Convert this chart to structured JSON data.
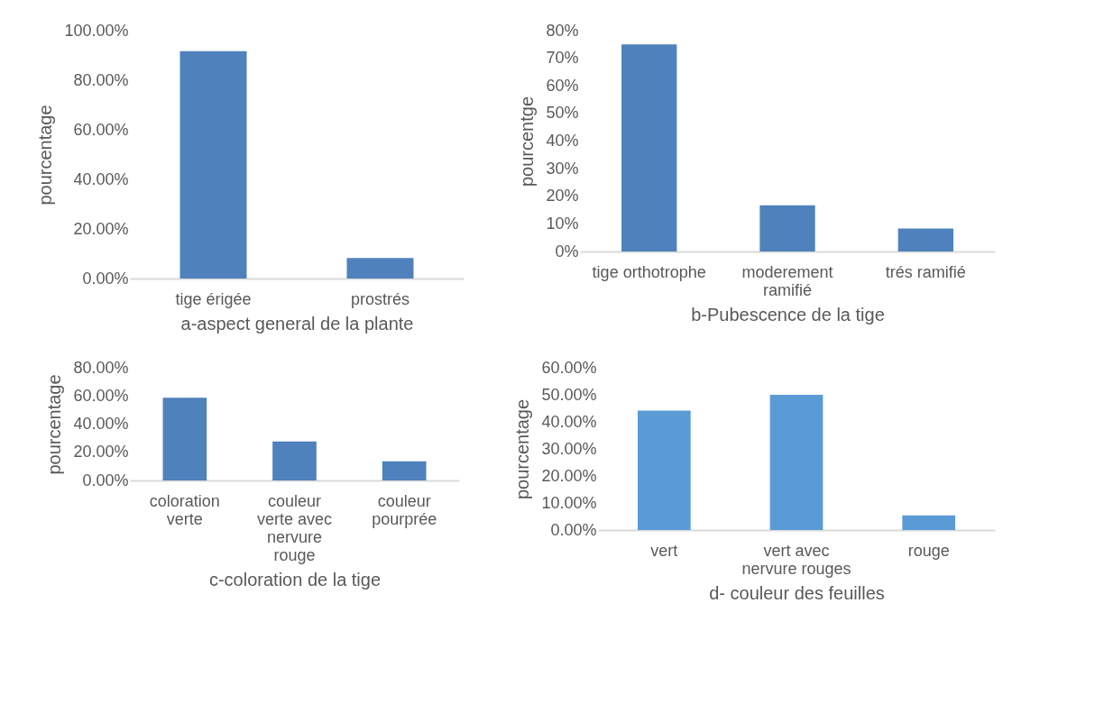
{
  "chart_data": [
    {
      "type": "bar",
      "xlabel": "a-aspect general de la plante",
      "ylabel": "pourcentage",
      "categories": [
        "tige érigée",
        "prostrés"
      ],
      "values": [
        91.7,
        8.3
      ],
      "color": "#4f81bd",
      "ylim": [
        0,
        100
      ],
      "yticks": [
        {
          "value": 0,
          "label": "0.00%"
        },
        {
          "value": 20,
          "label": "20.00%"
        },
        {
          "value": 40,
          "label": "40.00%"
        },
        {
          "value": 60,
          "label": "60.00%"
        },
        {
          "value": 80,
          "label": "80.00%"
        },
        {
          "value": 100,
          "label": "100.00%"
        }
      ],
      "grid": false
    },
    {
      "type": "bar",
      "xlabel": "b-Pubescence de la tige",
      "ylabel": "pourcentge",
      "categories": [
        "tige orthotrophe",
        "moderement ramifié",
        "trés ramifié"
      ],
      "values": [
        75.0,
        16.7,
        8.3
      ],
      "color": "#4f81bd",
      "ylim": [
        0,
        80
      ],
      "yticks": [
        {
          "value": 0,
          "label": "0%"
        },
        {
          "value": 10,
          "label": "10%"
        },
        {
          "value": 20,
          "label": "20%"
        },
        {
          "value": 30,
          "label": "30%"
        },
        {
          "value": 40,
          "label": "40%"
        },
        {
          "value": 50,
          "label": "50%"
        },
        {
          "value": 60,
          "label": "60%"
        },
        {
          "value": 70,
          "label": "70%"
        },
        {
          "value": 80,
          "label": "80%"
        }
      ],
      "grid": false
    },
    {
      "type": "bar",
      "xlabel": "c-coloration de la tige",
      "ylabel": "pourcentage",
      "categories": [
        "coloration verte",
        "couleur verte avec nervure rouge",
        "couleur pourprée"
      ],
      "values": [
        58.7,
        27.7,
        13.6
      ],
      "color": "#4f81bd",
      "ylim": [
        0,
        80
      ],
      "yticks": [
        {
          "value": 0,
          "label": "0.00%"
        },
        {
          "value": 20,
          "label": "20.00%"
        },
        {
          "value": 40,
          "label": "40.00%"
        },
        {
          "value": 60,
          "label": "60.00%"
        },
        {
          "value": 80,
          "label": "80.00%"
        }
      ],
      "grid": false
    },
    {
      "type": "bar",
      "xlabel": "d- couleur des feuilles",
      "ylabel": "pourcentage",
      "categories": [
        "vert",
        "vert avec nervure rouges",
        "rouge"
      ],
      "values": [
        44.2,
        50.0,
        5.4
      ],
      "color": "#5b9bd5",
      "ylim": [
        0,
        60
      ],
      "yticks": [
        {
          "value": 0,
          "label": "0.00%"
        },
        {
          "value": 10,
          "label": "10.00%"
        },
        {
          "value": 20,
          "label": "20.00%"
        },
        {
          "value": 30,
          "label": "30.00%"
        },
        {
          "value": 40,
          "label": "40.00%"
        },
        {
          "value": 50,
          "label": "50.00%"
        },
        {
          "value": 60,
          "label": "60.00%"
        }
      ],
      "grid": false
    }
  ]
}
